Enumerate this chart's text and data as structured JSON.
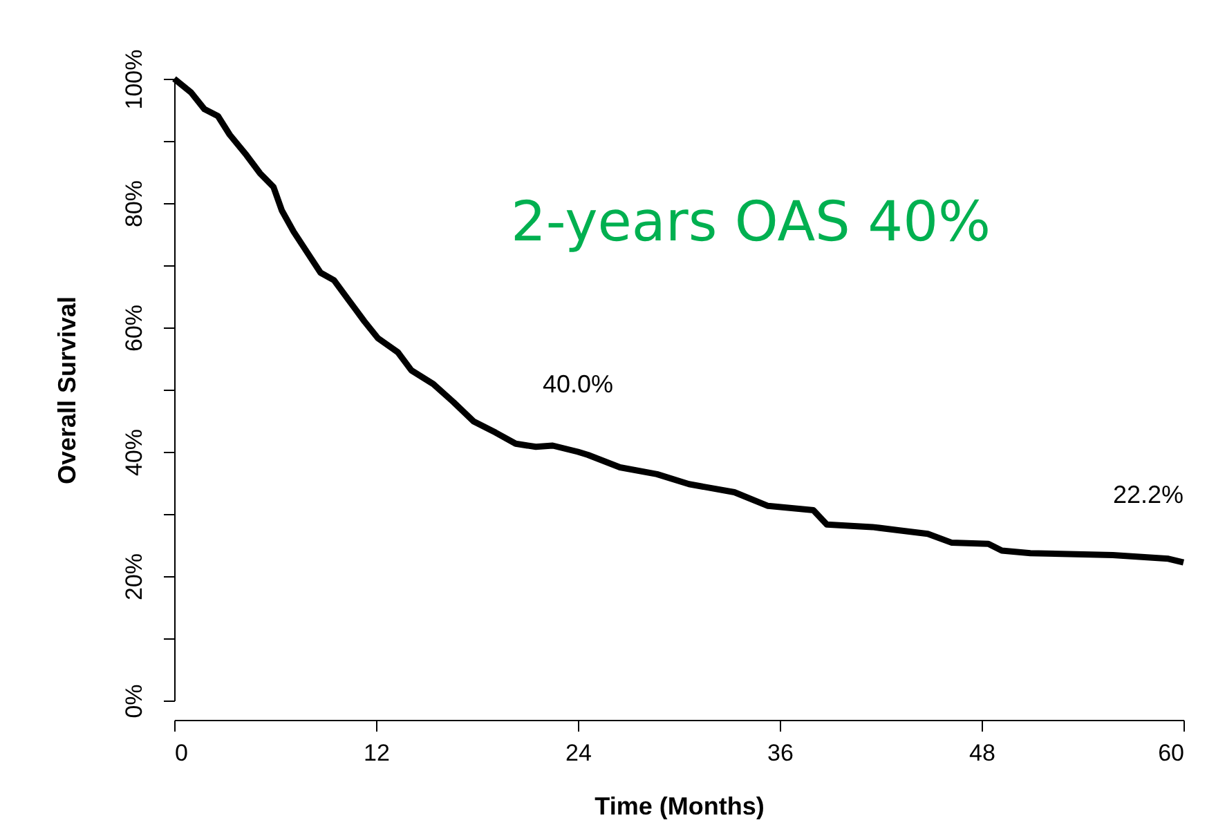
{
  "chart_data": {
    "type": "line",
    "xlabel": "Time (Months)",
    "ylabel": "Overall Survival",
    "x": [
      0,
      1,
      1.8,
      2.6,
      3.3,
      4.3,
      5.1,
      5.9,
      6.4,
      7.1,
      7.9,
      8.7,
      9.5,
      10.4,
      11.3,
      12.1,
      13.3,
      14.1,
      15.4,
      16.6,
      17.8,
      19.1,
      20.3,
      21.5,
      22.5,
      24,
      24.6,
      26.5,
      28.7,
      30.6,
      33.3,
      35.3,
      38,
      38.8,
      41.5,
      44.8,
      46.2,
      48.4,
      49.2,
      50.9,
      55.8,
      59.1,
      60
    ],
    "series": [
      {
        "color": "#000000",
        "values": [
          100,
          97.8,
          95.1,
          94,
          91,
          87.7,
          84.8,
          82.6,
          78.8,
          75.4,
          72.1,
          68.8,
          67.6,
          64.3,
          61,
          58.3,
          56,
          53.1,
          50.9,
          48,
          44.9,
          43.1,
          41.3,
          40.8,
          41,
          40,
          39.5,
          37.5,
          36.4,
          34.8,
          33.5,
          31.3,
          30.6,
          28.3,
          27.9,
          26.8,
          25.4,
          25.2,
          24.1,
          23.7,
          23.4,
          22.8,
          22.2
        ]
      }
    ],
    "xlim": [
      0,
      60
    ],
    "xticks": [
      0,
      12,
      24,
      36,
      48,
      60
    ],
    "ylim": [
      0,
      100
    ],
    "yticks": [
      {
        "value": 0,
        "label": "0%"
      },
      {
        "value": 10,
        "label": null
      },
      {
        "value": 20,
        "label": "20%"
      },
      {
        "value": 30,
        "label": null
      },
      {
        "value": 40,
        "label": "40%"
      },
      {
        "value": 50,
        "label": null
      },
      {
        "value": 60,
        "label": "60%"
      },
      {
        "value": 70,
        "label": null
      },
      {
        "value": 80,
        "label": "80%"
      },
      {
        "value": 90,
        "label": null
      },
      {
        "value": 100,
        "label": "100%"
      }
    ],
    "annotations": [
      "2-years OAS 40%",
      {
        "text": "40.0%",
        "x": 24,
        "y": 40
      },
      {
        "text": "22.2%",
        "x": 60,
        "y": 22.2
      }
    ],
    "grid": false,
    "marker": "none",
    "line_style": "solid"
  }
}
